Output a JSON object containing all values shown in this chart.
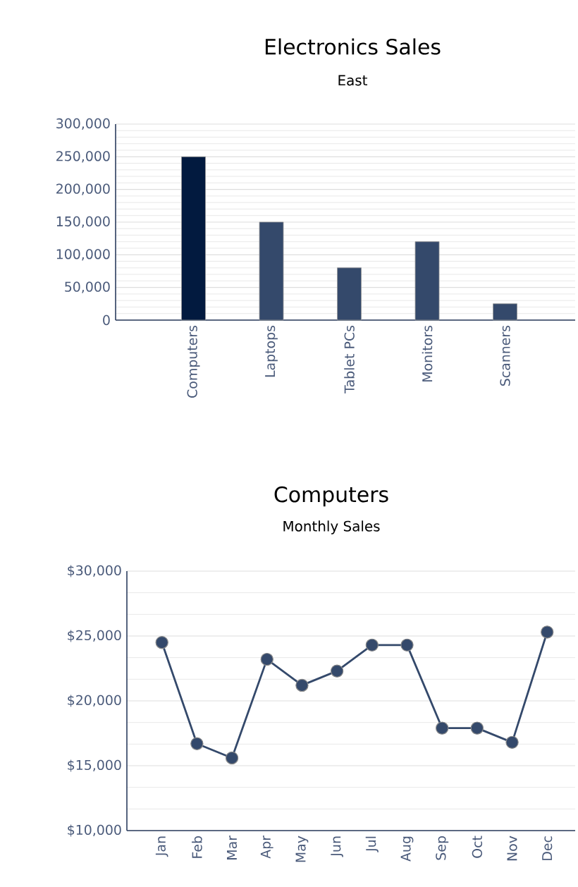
{
  "chart_data": [
    {
      "type": "bar",
      "title": "Electronics Sales",
      "subtitle": "East",
      "categories": [
        "Computers",
        "Laptops",
        "Tablet PCs",
        "Monitors",
        "Scanners"
      ],
      "values": [
        250000,
        150000,
        80000,
        120000,
        25000
      ],
      "colors": [
        "#021a3f",
        "#34496b",
        "#34496b",
        "#34496b",
        "#34496b"
      ],
      "ylim": [
        0,
        300000
      ],
      "yticks": [
        {
          "value": 0,
          "label": "0"
        },
        {
          "value": 50000,
          "label": "50,000"
        },
        {
          "value": 100000,
          "label": "100,000"
        },
        {
          "value": 150000,
          "label": "150,000"
        },
        {
          "value": 200000,
          "label": "200,000"
        },
        {
          "value": 250000,
          "label": "250,000"
        },
        {
          "value": 300000,
          "label": "300,000"
        }
      ],
      "grid": "y"
    },
    {
      "type": "line",
      "title": "Computers",
      "subtitle": "Monthly Sales",
      "categories": [
        "Jan",
        "Feb",
        "Mar",
        "Apr",
        "May",
        "Jun",
        "Jul",
        "Aug",
        "Sep",
        "Oct",
        "Nov",
        "Dec"
      ],
      "values": [
        24500,
        16700,
        15600,
        23200,
        21200,
        22300,
        24300,
        24300,
        17900,
        17900,
        16800,
        25300
      ],
      "color": "#34496b",
      "ylim": [
        10000,
        30000
      ],
      "yticks": [
        {
          "value": 10000,
          "label": "$10,000"
        },
        {
          "value": 15000,
          "label": "$15,000"
        },
        {
          "value": 20000,
          "label": "$20,000"
        },
        {
          "value": 25000,
          "label": "$25,000"
        },
        {
          "value": 30000,
          "label": "$30,000"
        }
      ],
      "grid": "y",
      "marker": "circle",
      "line_style": "solid"
    }
  ]
}
